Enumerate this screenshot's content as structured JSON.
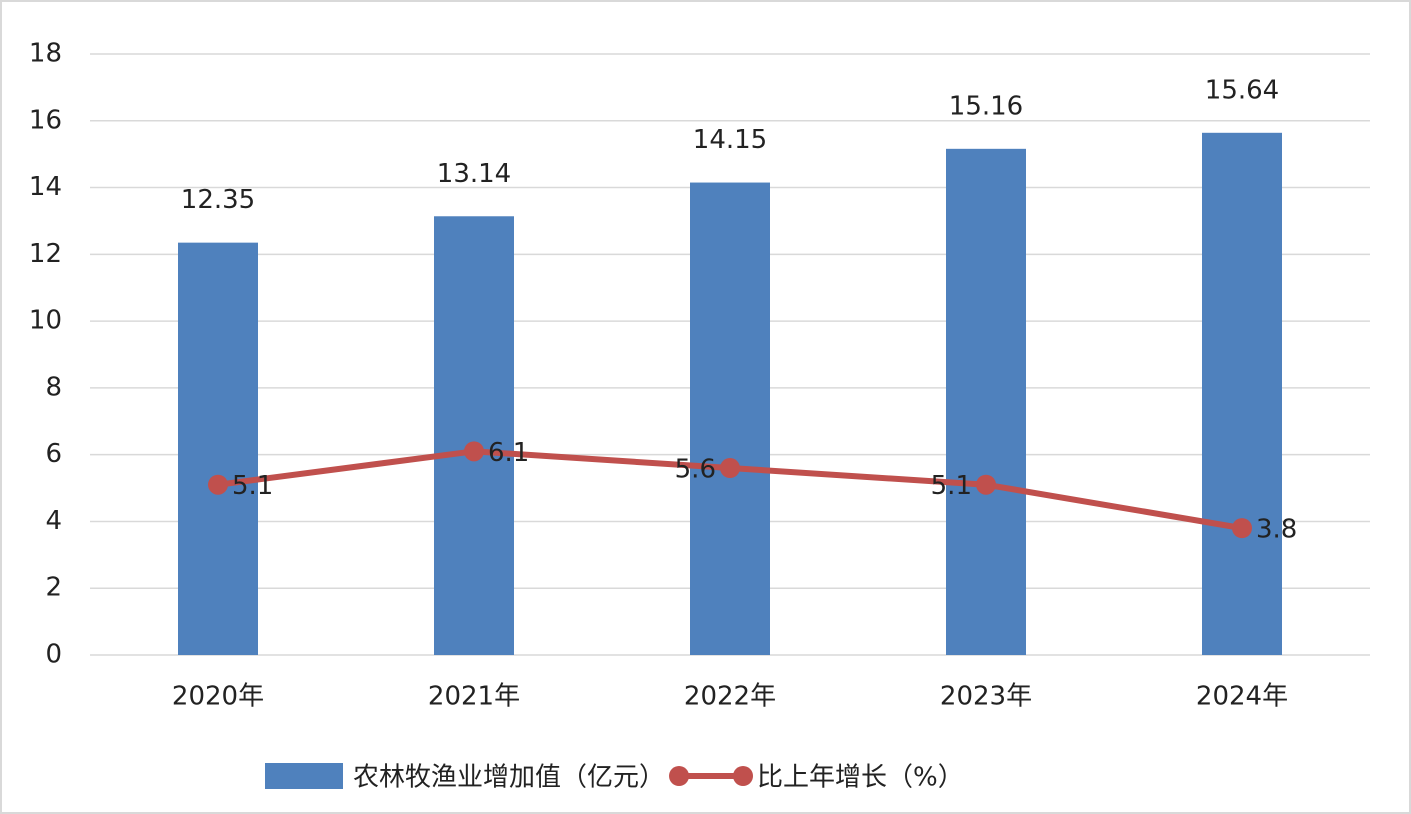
{
  "chart_data": {
    "type": "bar",
    "categories": [
      "2020年",
      "2021年",
      "2022年",
      "2023年",
      "2024年"
    ],
    "series": [
      {
        "name": "农林牧渔业增加值（亿元）",
        "color": "#4f81bd",
        "type": "bar",
        "values": [
          12.35,
          13.14,
          14.15,
          15.16,
          15.64
        ]
      },
      {
        "name": "比上年增长（%）",
        "color": "#c0504d",
        "type": "line",
        "values": [
          5.1,
          6.1,
          5.6,
          5.1,
          3.8
        ]
      }
    ],
    "ylim": [
      0,
      18
    ],
    "yticks": [
      0,
      2,
      4,
      6,
      8,
      10,
      12,
      14,
      16,
      18
    ],
    "grid": true,
    "legend": "bottom"
  }
}
